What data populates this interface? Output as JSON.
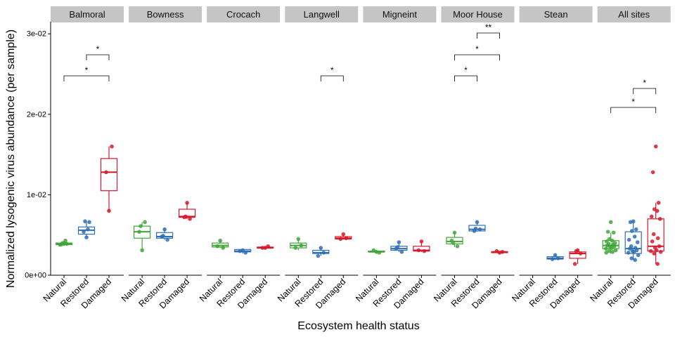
{
  "chart_data": {
    "type": "boxplot",
    "xlabel": "Ecosystem health status",
    "ylabel": "Normalized lysogenic virus abundance (per sample)",
    "ylim": [
      0,
      0.0315
    ],
    "yticks": [
      {
        "value": 0,
        "label": "0e+00"
      },
      {
        "value": 0.01,
        "label": "1e-02"
      },
      {
        "value": 0.02,
        "label": "2e-02"
      },
      {
        "value": 0.03,
        "label": "3e-02"
      }
    ],
    "categories": [
      "Natural",
      "Restored",
      "Damaged"
    ],
    "colors": {
      "Natural": "#41a53a",
      "Restored": "#2e6eb5",
      "Damaged": "#d7182a"
    },
    "grid": false,
    "panels": [
      {
        "site": "Balmoral",
        "groups": [
          {
            "status": "Natural",
            "stats": [
              0.0038,
              0.0038,
              0.0039,
              0.004,
              0.0042
            ],
            "points": [
              0.0039,
              0.0038,
              0.0039,
              0.004,
              0.0043,
              0.0038
            ]
          },
          {
            "status": "Restored",
            "stats": [
              0.0047,
              0.0051,
              0.0056,
              0.006,
              0.0067
            ],
            "points": [
              0.0047,
              0.0054,
              0.0066,
              0.0067,
              0.0057
            ]
          },
          {
            "status": "Damaged",
            "stats": [
              0.008,
              0.0105,
              0.0128,
              0.0145,
              0.016
            ],
            "points": [
              0.008,
              0.0128,
              0.016
            ]
          }
        ],
        "comparisons": [
          {
            "from": "Restored",
            "to": "Damaged",
            "label": "*"
          },
          {
            "from": "Natural",
            "to": "Damaged",
            "label": "*"
          }
        ]
      },
      {
        "site": "Bowness",
        "groups": [
          {
            "status": "Natural",
            "stats": [
              0.0031,
              0.0046,
              0.0054,
              0.0061,
              0.0066
            ],
            "points": [
              0.0031,
              0.0054,
              0.0066,
              0.0061
            ]
          },
          {
            "status": "Restored",
            "stats": [
              0.0044,
              0.0046,
              0.0048,
              0.0053,
              0.0057
            ],
            "points": [
              0.0057,
              0.0048,
              0.0044,
              0.0049
            ]
          },
          {
            "status": "Damaged",
            "stats": [
              0.007,
              0.0072,
              0.0073,
              0.0082,
              0.009
            ],
            "points": [
              0.009,
              0.0072,
              0.007,
              0.0073
            ]
          }
        ],
        "comparisons": []
      },
      {
        "site": "Crocach",
        "groups": [
          {
            "status": "Natural",
            "stats": [
              0.0034,
              0.0035,
              0.0037,
              0.004,
              0.0043
            ],
            "points": [
              0.0043,
              0.0036,
              0.0034
            ]
          },
          {
            "status": "Restored",
            "stats": [
              0.0027,
              0.0029,
              0.003,
              0.0032,
              0.0033
            ],
            "points": [
              0.0031,
              0.003,
              0.0028
            ]
          },
          {
            "status": "Damaged",
            "stats": [
              0.0033,
              0.0034,
              0.0034,
              0.0035,
              0.0036
            ],
            "points": [
              0.0034,
              0.0034,
              0.0036
            ]
          }
        ],
        "comparisons": []
      },
      {
        "site": "Langwell",
        "groups": [
          {
            "status": "Natural",
            "stats": [
              0.0031,
              0.0034,
              0.0037,
              0.004,
              0.0045
            ],
            "points": [
              0.0045,
              0.0034,
              0.0037
            ]
          },
          {
            "status": "Restored",
            "stats": [
              0.0024,
              0.0027,
              0.0028,
              0.0031,
              0.0034
            ],
            "points": [
              0.0034,
              0.0024,
              0.0028
            ]
          },
          {
            "status": "Damaged",
            "stats": [
              0.0045,
              0.0045,
              0.0046,
              0.0048,
              0.0051
            ],
            "points": [
              0.0051,
              0.0045,
              0.0046
            ]
          }
        ],
        "comparisons": [
          {
            "from": "Restored",
            "to": "Damaged",
            "label": "*"
          }
        ]
      },
      {
        "site": "Migneint",
        "groups": [
          {
            "status": "Natural",
            "stats": [
              0.0027,
              0.0029,
              0.0029,
              0.003,
              0.0031
            ],
            "points": [
              0.0029,
              0.0031,
              0.0028
            ]
          },
          {
            "status": "Restored",
            "stats": [
              0.0029,
              0.0031,
              0.0033,
              0.0036,
              0.0041
            ],
            "points": [
              0.0041,
              0.0033,
              0.0029,
              0.0035
            ]
          },
          {
            "status": "Damaged",
            "stats": [
              0.0029,
              0.003,
              0.0031,
              0.0036,
              0.0042
            ],
            "points": [
              0.0042,
              0.0031,
              0.003
            ]
          }
        ],
        "comparisons": []
      },
      {
        "site": "Moor House",
        "groups": [
          {
            "status": "Natural",
            "stats": [
              0.0035,
              0.0039,
              0.0042,
              0.0047,
              0.0053
            ],
            "points": [
              0.0053,
              0.0043,
              0.0036,
              0.004
            ]
          },
          {
            "status": "Restored",
            "stats": [
              0.0054,
              0.0055,
              0.0057,
              0.0062,
              0.0066
            ],
            "points": [
              0.0066,
              0.0055,
              0.0057,
              0.0058
            ]
          },
          {
            "status": "Damaged",
            "stats": [
              0.0027,
              0.0028,
              0.0029,
              0.0029,
              0.003
            ],
            "points": [
              0.0028,
              0.003,
              0.0029
            ]
          }
        ],
        "comparisons": [
          {
            "from": "Natural",
            "to": "Restored",
            "label": "*"
          },
          {
            "from": "Natural",
            "to": "Damaged",
            "label": "*"
          },
          {
            "from": "Restored",
            "to": "Damaged",
            "label": "**"
          }
        ]
      },
      {
        "site": "Stean",
        "groups": [
          {
            "status": "Natural",
            "stats": null,
            "points": []
          },
          {
            "status": "Restored",
            "stats": [
              0.0019,
              0.002,
              0.0021,
              0.0023,
              0.0025
            ],
            "points": [
              0.0025,
              0.002,
              0.0021
            ]
          },
          {
            "status": "Damaged",
            "stats": [
              0.0014,
              0.0021,
              0.0027,
              0.0029,
              0.0031
            ],
            "points": [
              0.0031,
              0.0014,
              0.0027,
              0.003
            ]
          }
        ],
        "comparisons": []
      },
      {
        "site": "All sites",
        "groups": [
          {
            "status": "Natural",
            "stats": [
              0.0027,
              0.0033,
              0.0037,
              0.0043,
              0.0053
            ],
            "points": [
              0.0066,
              0.0054,
              0.0053,
              0.0045,
              0.0043,
              0.0042,
              0.004,
              0.0039,
              0.0038,
              0.0037,
              0.0036,
              0.0035,
              0.0034,
              0.0033,
              0.0031,
              0.003,
              0.0029,
              0.0028
            ]
          },
          {
            "status": "Restored",
            "stats": [
              0.0019,
              0.0027,
              0.0033,
              0.0054,
              0.0067
            ],
            "points": [
              0.0067,
              0.0066,
              0.0057,
              0.0055,
              0.0048,
              0.0044,
              0.0041,
              0.0036,
              0.0034,
              0.0033,
              0.0031,
              0.003,
              0.0029,
              0.0028,
              0.0025,
              0.0021,
              0.0019
            ]
          },
          {
            "status": "Damaged",
            "stats": [
              0.0014,
              0.003,
              0.0036,
              0.007,
              0.009
            ],
            "points": [
              0.016,
              0.0128,
              0.009,
              0.0082,
              0.008,
              0.0073,
              0.007,
              0.0051,
              0.0046,
              0.0042,
              0.0036,
              0.0034,
              0.0031,
              0.003,
              0.0029,
              0.0027,
              0.0014
            ]
          }
        ],
        "comparisons": [
          {
            "from": "Restored",
            "to": "Damaged",
            "label": "*"
          },
          {
            "from": "Natural",
            "to": "Damaged",
            "label": "*"
          }
        ]
      }
    ]
  }
}
